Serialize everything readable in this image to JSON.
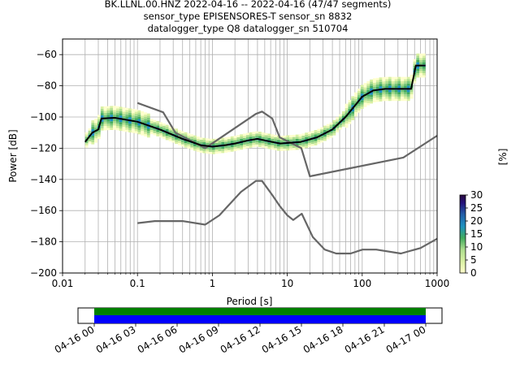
{
  "chart_data": {
    "type": "heatmap",
    "title_lines": [
      "BK.LLNL.00.HNZ   2022-04-16 -- 2022-04-16  (47/47 segments)",
      "sensor_type EPISENSORES-T sensor_sn 8832",
      "datalogger_type Q8 datalogger_sn 510704"
    ],
    "xlabel": "Period [s]",
    "ylabel": "Power [dB]",
    "x_scale": "log",
    "xlim": [
      0.01,
      1000
    ],
    "ylim": [
      -200,
      -50
    ],
    "x_ticks": [
      {
        "v": 0.01,
        "label": "0.01"
      },
      {
        "v": 0.1,
        "label": "0.1"
      },
      {
        "v": 1,
        "label": "1"
      },
      {
        "v": 10,
        "label": "10"
      },
      {
        "v": 100,
        "label": "100"
      },
      {
        "v": 1000,
        "label": "1000"
      }
    ],
    "y_ticks": [
      {
        "v": -60,
        "label": "−60"
      },
      {
        "v": -80,
        "label": "−80"
      },
      {
        "v": -100,
        "label": "−100"
      },
      {
        "v": -120,
        "label": "−120"
      },
      {
        "v": -140,
        "label": "−140"
      },
      {
        "v": -160,
        "label": "−160"
      },
      {
        "v": -180,
        "label": "−180"
      },
      {
        "v": -200,
        "label": "−200"
      }
    ],
    "grid": true,
    "colorbar": {
      "label": "[%]",
      "ticks": [
        "0",
        "5",
        "10",
        "15",
        "20",
        "25",
        "30"
      ],
      "range": [
        0,
        30
      ]
    },
    "mean_line": [
      [
        0.02,
        -116
      ],
      [
        0.025,
        -110
      ],
      [
        0.03,
        -108
      ],
      [
        0.033,
        -101
      ],
      [
        0.05,
        -100.5
      ],
      [
        0.1,
        -103
      ],
      [
        0.2,
        -108
      ],
      [
        0.4,
        -114
      ],
      [
        0.7,
        -118
      ],
      [
        1,
        -119
      ],
      [
        1.5,
        -118
      ],
      [
        2,
        -117
      ],
      [
        3,
        -115
      ],
      [
        4,
        -114
      ],
      [
        5,
        -115
      ],
      [
        8,
        -117
      ],
      [
        15,
        -116
      ],
      [
        25,
        -113
      ],
      [
        40,
        -108
      ],
      [
        60,
        -100
      ],
      [
        100,
        -87
      ],
      [
        140,
        -83
      ],
      [
        200,
        -82
      ],
      [
        300,
        -82
      ],
      [
        450,
        -82
      ],
      [
        520,
        -67
      ],
      [
        700,
        -67
      ]
    ],
    "nhnm": [
      [
        0.1,
        -91
      ],
      [
        0.22,
        -97
      ],
      [
        0.32,
        -110
      ],
      [
        0.8,
        -120
      ],
      [
        3.8,
        -98
      ],
      [
        4.6,
        -96.5
      ],
      [
        6.3,
        -101
      ],
      [
        7.9,
        -113
      ],
      [
        15.4,
        -120
      ],
      [
        20,
        -138
      ],
      [
        354,
        -126
      ],
      [
        1000,
        -112
      ]
    ],
    "nlnm": [
      [
        0.1,
        -168
      ],
      [
        0.17,
        -166.7
      ],
      [
        0.4,
        -166.7
      ],
      [
        0.8,
        -169
      ],
      [
        1.24,
        -163
      ],
      [
        2.4,
        -148
      ],
      [
        3.8,
        -141
      ],
      [
        4.6,
        -141
      ],
      [
        6.3,
        -150
      ],
      [
        7.9,
        -157
      ],
      [
        10,
        -163
      ],
      [
        12,
        -166
      ],
      [
        15.6,
        -162
      ],
      [
        21.9,
        -177
      ],
      [
        31.6,
        -185
      ],
      [
        45,
        -187.5
      ],
      [
        70,
        -187.5
      ],
      [
        101,
        -185
      ],
      [
        154,
        -185
      ],
      [
        328,
        -187.5
      ],
      [
        600,
        -184
      ],
      [
        1000,
        -178
      ]
    ],
    "timeline": {
      "tick_labels": [
        "04-16 00",
        "04-16 03",
        "04-16 06",
        "04-16 09",
        "04-16 12",
        "04-16 15",
        "04-16 18",
        "04-16 21",
        "04-17 00"
      ],
      "bar_colors": [
        "#008000",
        "#0000ff"
      ]
    }
  }
}
